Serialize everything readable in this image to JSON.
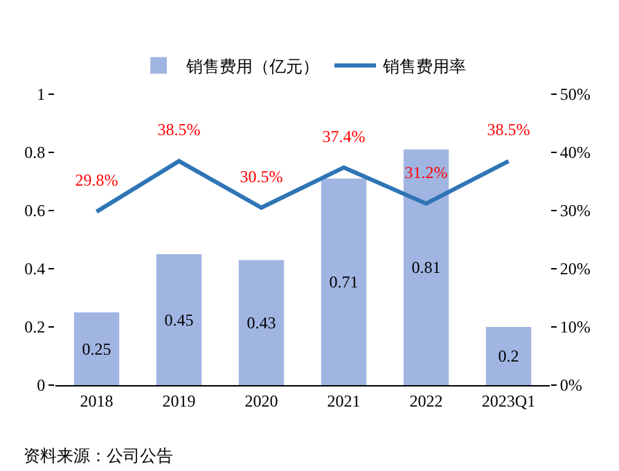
{
  "chart_data": {
    "type": "bar",
    "categories": [
      "2018",
      "2019",
      "2020",
      "2021",
      "2022",
      "2023Q1"
    ],
    "series": [
      {
        "name": "销售费用（亿元）",
        "color": "#a1b5e3",
        "values": [
          0.25,
          0.45,
          0.43,
          0.71,
          0.81,
          0.2
        ],
        "value_labels": [
          "0.25",
          "0.45",
          "0.43",
          "0.71",
          "0.81",
          "0.2"
        ]
      },
      {
        "name": "销售费用率",
        "type": "line",
        "axis": "y2",
        "color": "#2e75b6",
        "values": [
          29.8,
          38.5,
          30.5,
          37.4,
          31.2,
          38.5
        ],
        "value_labels": [
          "29.8%",
          "38.5%",
          "30.5%",
          "37.4%",
          "31.2%",
          "38.5%"
        ]
      }
    ],
    "ylim": [
      0,
      1
    ],
    "yticks": [
      0,
      0.2,
      0.4,
      0.6,
      0.8,
      1
    ],
    "y2lim": [
      0,
      50
    ],
    "y2ticks": [
      {
        "value": 0,
        "label": "0%"
      },
      {
        "value": 10,
        "label": "10%"
      },
      {
        "value": 20,
        "label": "20%"
      },
      {
        "value": 30,
        "label": "30%"
      },
      {
        "value": 40,
        "label": "40%"
      },
      {
        "value": 50,
        "label": "50%"
      }
    ],
    "legend": "top",
    "grid": false,
    "marker": "none",
    "line_style": "solid",
    "annotations": [
      "资料来源：公司公告"
    ]
  }
}
